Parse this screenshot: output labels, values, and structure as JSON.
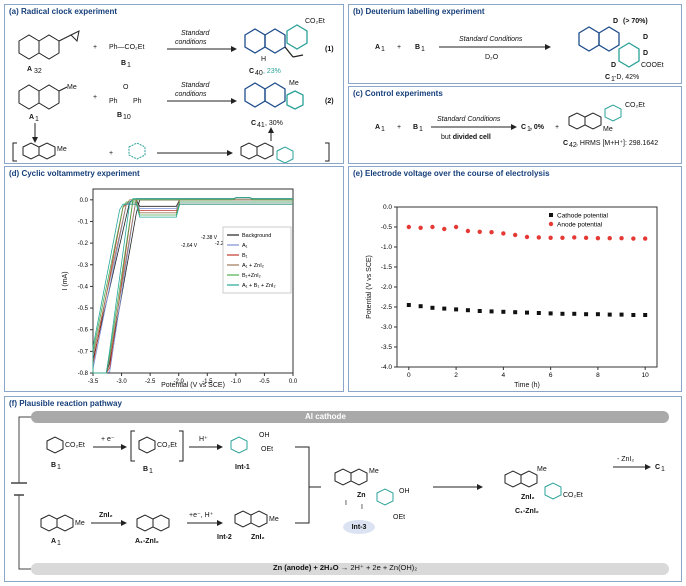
{
  "panels": {
    "a": {
      "title": "(a) Radical clock experiment"
    },
    "b": {
      "title": "(b) Deuterium labelling experiment"
    },
    "c": {
      "title": "(c) Control experiments"
    },
    "d": {
      "title": "(d) Cyclic voltammetry experiment"
    },
    "e": {
      "title": "(e) Electrode voltage over the course of electrolysis"
    },
    "f": {
      "title": "(f) Plausible reaction pathway"
    }
  },
  "panel_a": {
    "reagent1": "Ph—CO₂Et",
    "plus": "+",
    "a32": "A",
    "a32_sub": "32",
    "b1": "B",
    "b1_sub": "1",
    "cond1_line1": "Standard",
    "cond1_line2": "conditions",
    "prod1_label": "C",
    "prod1_sub": "40",
    "prod1_yield": ", 23%",
    "eq1": "(1)",
    "a1": "A",
    "a1_sub": "1",
    "b10": "B",
    "b10_sub": "10",
    "b10_o": "O",
    "b10_ph": "Ph",
    "cond2_line1": "Standard",
    "cond2_line2": "conditions",
    "prod2_label": "C",
    "prod2_sub": "41",
    "prod2_yield": ", 30%",
    "eq2": "(2)",
    "me": "Me",
    "nh": "N",
    "h": "H",
    "co2et": "CO₂Et"
  },
  "panel_b": {
    "a1": "A",
    "a1_sub": "1",
    "plus": "+",
    "b1": "B",
    "b1_sub": "1",
    "cond": "Standard Conditions",
    "reagent": "D₂O",
    "d_label": "D",
    "percent": "(> 70%)",
    "cooet": "COOEt",
    "product": "C",
    "product_sub": "1",
    "product_suffix": "-D, 42%"
  },
  "panel_c": {
    "a1": "A",
    "a1_sub": "1",
    "plus": "+",
    "b1": "B",
    "b1_sub": "1",
    "cond": "Standard Conditions",
    "cond2_pre": "but ",
    "cond2_bold": "divided cell",
    "c1": "C",
    "c1_sub": "1",
    "c1_yield": ", 0%",
    "plus2": "+",
    "c42": "C",
    "c42_sub": "42",
    "hrms": ", HRMS [M+H⁺]: 298.1642",
    "co2et": "CO₂Et",
    "me": "Me"
  },
  "panel_d": {
    "xlabel": "Potential (V vs SCE)",
    "ylabel": "I (mA)",
    "xticks": [
      "-3.5",
      "-3.0",
      "-2.5",
      "-2.0",
      "-1.5",
      "-1.0",
      "-0.5",
      "0.0"
    ],
    "yticks": [
      "0.0",
      "-0.1",
      "-0.2",
      "-0.3",
      "-0.4",
      "-0.5",
      "-0.6",
      "-0.7",
      "-0.8"
    ],
    "annotations": [
      "-2.21 V",
      "-2.38 V",
      "-2.28 V",
      "-2.64 V"
    ],
    "legend": [
      {
        "label": "Background",
        "color": "#222222"
      },
      {
        "label": "A₁",
        "color": "#7b8fd6"
      },
      {
        "label": "B₁",
        "color": "#c0392b"
      },
      {
        "label": "A₁ + ZnI₂",
        "color": "#a0785a"
      },
      {
        "label": "B₁+ZnI₂",
        "color": "#4caf50"
      },
      {
        "label": "A₁ + B₁ + ZnI₂",
        "color": "#26a69a"
      }
    ]
  },
  "chart_data": {
    "type": "scatter",
    "xlabel": "Time (h)",
    "ylabel": "Potential (V vs SCE)",
    "xlim": [
      -0.5,
      10.5
    ],
    "ylim": [
      -4.0,
      0.0
    ],
    "xticks": [
      "0",
      "2",
      "4",
      "6",
      "8",
      "10"
    ],
    "yticks": [
      "0.0",
      "-0.5",
      "-1.0",
      "-1.5",
      "-2.0",
      "-2.5",
      "-3.0",
      "-3.5",
      "-4.0"
    ],
    "legend_position": "top-right",
    "x": [
      0,
      0.5,
      1,
      1.5,
      2,
      2.5,
      3,
      3.5,
      4,
      4.5,
      5,
      5.5,
      6,
      6.5,
      7,
      7.5,
      8,
      8.5,
      9,
      9.5,
      10
    ],
    "series": [
      {
        "name": "Cathode potential",
        "color": "#111111",
        "values": [
          -2.45,
          -2.48,
          -2.52,
          -2.54,
          -2.56,
          -2.58,
          -2.6,
          -2.61,
          -2.62,
          -2.63,
          -2.64,
          -2.65,
          -2.66,
          -2.67,
          -2.67,
          -2.68,
          -2.68,
          -2.69,
          -2.69,
          -2.7,
          -2.7
        ]
      },
      {
        "name": "Anode potential",
        "color": "#e53935",
        "values": [
          -0.5,
          -0.52,
          -0.5,
          -0.55,
          -0.5,
          -0.6,
          -0.62,
          -0.63,
          -0.66,
          -0.7,
          -0.75,
          -0.76,
          -0.77,
          -0.77,
          -0.76,
          -0.77,
          -0.78,
          -0.78,
          -0.78,
          -0.79,
          -0.79
        ]
      }
    ]
  },
  "panel_f": {
    "cathode": "Al cathode",
    "anode_eq": "Zn (anode) + 2H₂O",
    "anode_products": "2H⁺ + 2e + Zn(OH)₂",
    "e_minus": "+ e⁻",
    "h_plus": "H⁺",
    "b1": "B",
    "b1_sub": "1",
    "b1rad": "B",
    "b1rad_sub": "1",
    "int1": "Int-1",
    "oh": "OH",
    "oet": "OEt",
    "a1": "A",
    "a1_sub": "1",
    "zni2": "ZnI₂",
    "a1zni2": "A₁-ZnI₂",
    "e_h": "+e⁻, H⁺",
    "int2": "Int-2",
    "int3": "Int-3",
    "c1zni2": "C₁-ZnI₂",
    "minus_zni2": "- ZnI₂",
    "c1": "C",
    "c1_sub": "1",
    "co2et": "CO₂Et",
    "me": "Me",
    "zn": "Zn",
    "i": "I"
  }
}
